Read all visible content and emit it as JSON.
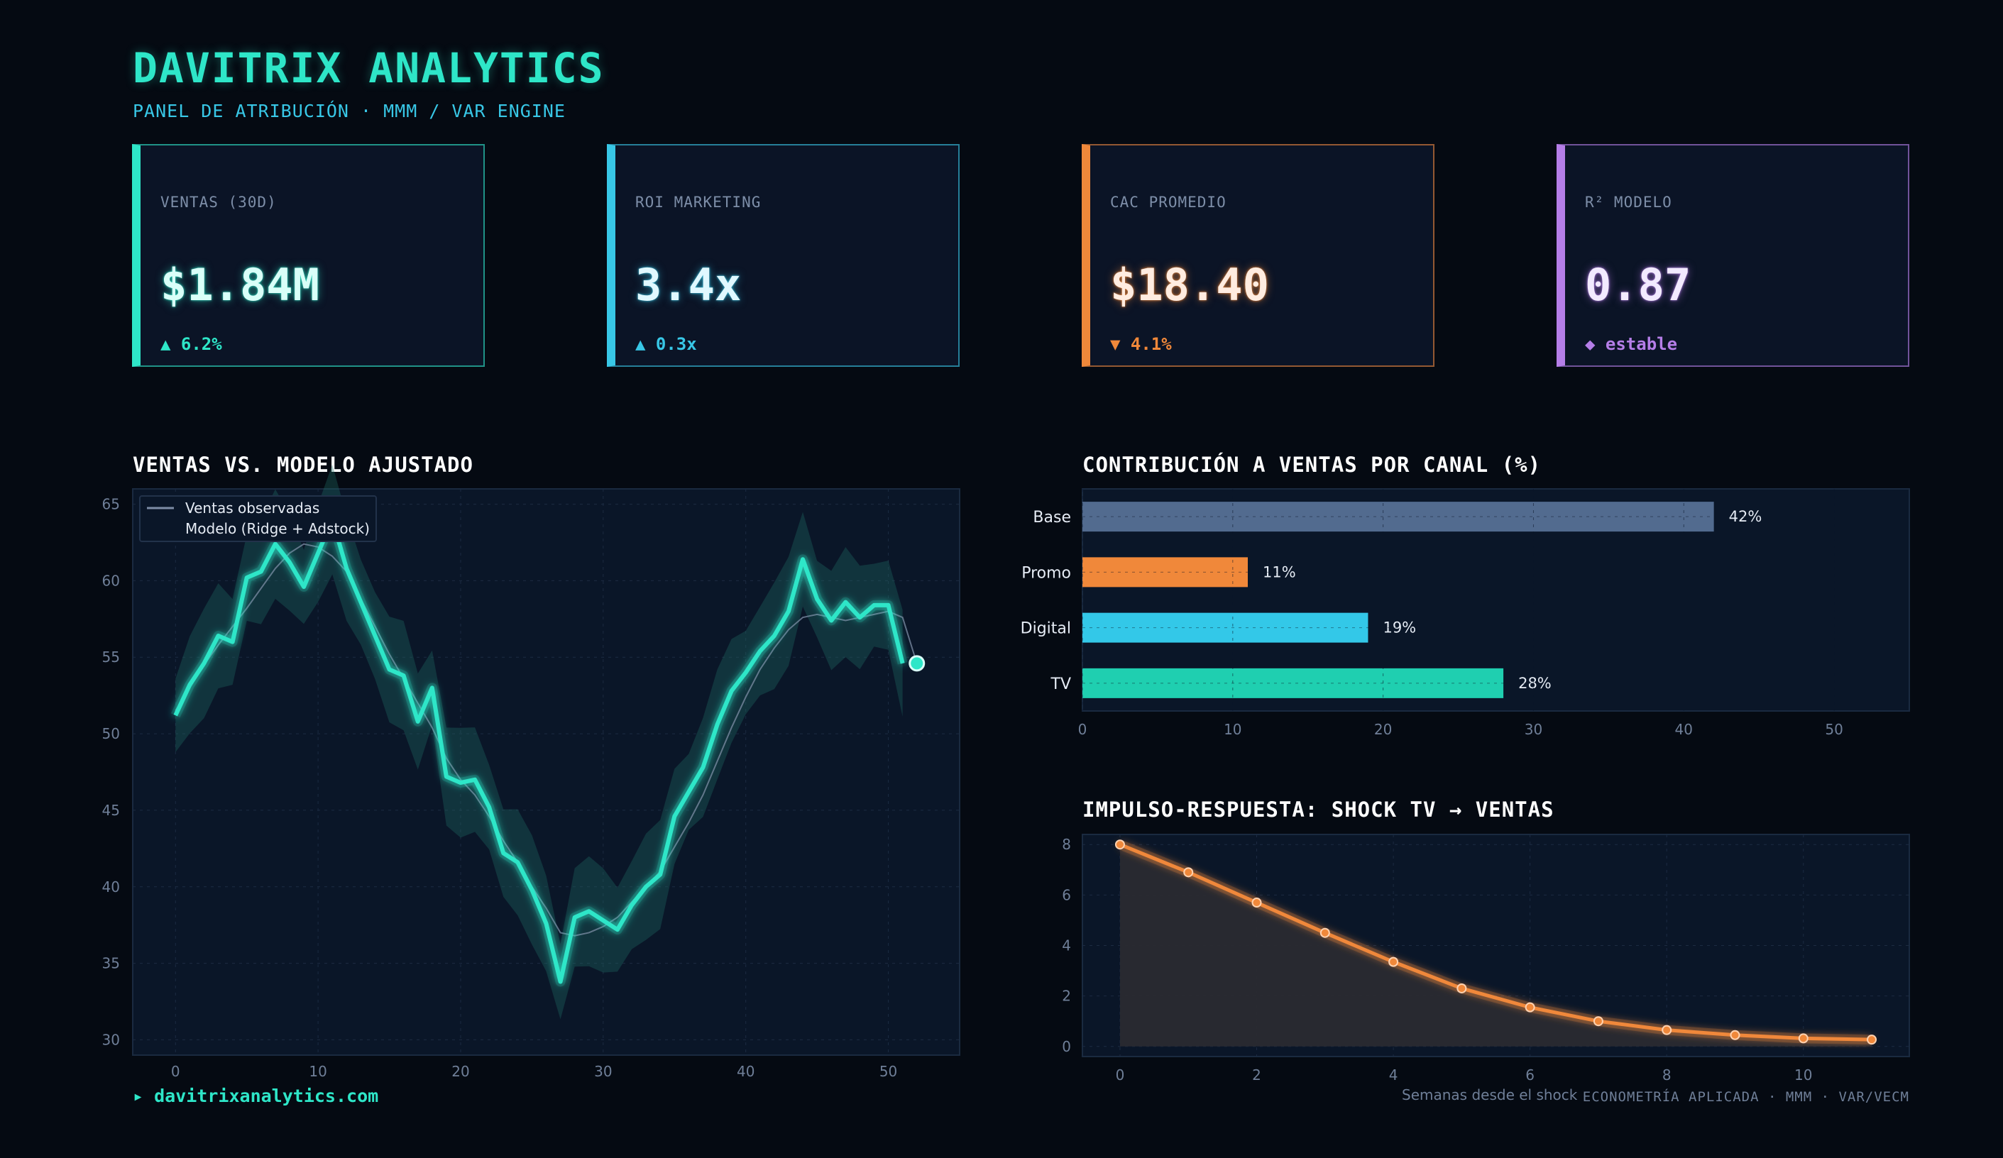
{
  "brand": {
    "title": "DAVITRIX ANALYTICS",
    "subtitle": "PANEL DE ATRIBUCIÓN · MMM / VAR ENGINE"
  },
  "kpis": [
    {
      "label": "VENTAS (30D)",
      "value": "$1.84M",
      "delta": "▲ 6.2%",
      "accent": "#2ee6c8",
      "value_color": "#d9fff8"
    },
    {
      "label": "ROI MARKETING",
      "value": "3.4x",
      "delta": "▲ 0.3x",
      "accent": "#38c7e6",
      "value_color": "#e0f8ff"
    },
    {
      "label": "CAC PROMEDIO",
      "value": "$18.40",
      "delta": "▼ 4.1%",
      "accent": "#f0883a",
      "value_color": "#ffece0"
    },
    {
      "label": "R² MODELO",
      "value": "0.87",
      "delta": "◆ estable",
      "accent": "#b57ee8",
      "value_color": "#f2eaff"
    }
  ],
  "chart_data": [
    {
      "type": "line",
      "title": "VENTAS VS. MODELO AJUSTADO",
      "xlabel": "",
      "ylabel": "",
      "xlim": [
        -3,
        55
      ],
      "ylim": [
        29,
        66
      ],
      "xticks": [
        0,
        10,
        20,
        30,
        40,
        50
      ],
      "yticks": [
        30,
        35,
        40,
        45,
        50,
        55,
        60,
        65
      ],
      "grid": true,
      "legend_position": "top-left",
      "series": [
        {
          "name": "Ventas observadas",
          "x": [
            0,
            1,
            2,
            3,
            4,
            5,
            6,
            7,
            8,
            9,
            10,
            11,
            12,
            13,
            14,
            15,
            16,
            17,
            18,
            19,
            20,
            21,
            22,
            23,
            24,
            25,
            26,
            27,
            28,
            29,
            30,
            31,
            32,
            33,
            34,
            35,
            36,
            37,
            38,
            39,
            40,
            41,
            42,
            43,
            44,
            45,
            46,
            47,
            48,
            49,
            50,
            51,
            52
          ],
          "values": [
            51.2,
            53.2,
            54.6,
            56.4,
            56.0,
            60.2,
            60.6,
            62.4,
            61.2,
            59.6,
            61.8,
            64.0,
            60.8,
            58.6,
            56.4,
            54.2,
            53.8,
            50.8,
            53.0,
            47.2,
            46.8,
            47.0,
            45.2,
            42.2,
            41.6,
            39.8,
            37.6,
            33.8,
            38.0,
            38.4,
            37.8,
            37.2,
            38.8,
            40.0,
            40.8,
            44.6,
            46.2,
            47.8,
            50.6,
            52.8,
            54.0,
            55.4,
            56.4,
            58.0,
            61.4,
            58.8,
            57.4,
            58.6,
            57.6,
            58.4,
            58.4,
            54.6,
            null
          ]
        },
        {
          "name": "Modelo (Ridge + Adstock)",
          "x": [
            0,
            1,
            2,
            3,
            4,
            5,
            6,
            7,
            8,
            9,
            10,
            11,
            12,
            13,
            14,
            15,
            16,
            17,
            18,
            19,
            20,
            21,
            22,
            23,
            24,
            25,
            26,
            27,
            28,
            29,
            30,
            31,
            32,
            33,
            34,
            35,
            36,
            37,
            38,
            39,
            40,
            41,
            42,
            43,
            44,
            45,
            46,
            47,
            48,
            49,
            50,
            51,
            52
          ],
          "values": [
            51.5,
            53.0,
            54.5,
            55.8,
            57.0,
            58.2,
            59.5,
            60.8,
            61.8,
            62.4,
            62.2,
            61.6,
            60.6,
            58.8,
            57.0,
            55.2,
            53.6,
            52.0,
            50.4,
            48.4,
            47.0,
            46.0,
            44.6,
            43.0,
            41.6,
            40.0,
            38.6,
            37.0,
            36.8,
            37.0,
            37.4,
            38.0,
            39.0,
            40.0,
            41.0,
            42.6,
            44.2,
            46.0,
            48.2,
            50.4,
            52.4,
            54.2,
            55.6,
            56.8,
            57.6,
            57.8,
            57.6,
            57.4,
            57.6,
            57.8,
            58.0,
            57.6,
            54.6
          ]
        }
      ]
    },
    {
      "type": "bar",
      "orientation": "horizontal",
      "title": "CONTRIBUCIÓN A VENTAS POR CANAL (%)",
      "categories": [
        "Base",
        "Promo",
        "Digital",
        "TV"
      ],
      "values": [
        42,
        11,
        19,
        28
      ],
      "value_labels": [
        "42%",
        "11%",
        "19%",
        "28%"
      ],
      "colors": [
        "#526b8f",
        "#f0883a",
        "#33c8e8",
        "#1fcfb0"
      ],
      "xlim": [
        0,
        55
      ],
      "xticks": [
        0,
        10,
        20,
        30,
        40,
        50
      ],
      "xlabel": "",
      "grid": true
    },
    {
      "type": "area",
      "title": "IMPULSO-RESPUESTA: SHOCK TV → VENTAS",
      "xlabel": "Semanas desde el shock",
      "ylabel": "",
      "x": [
        0,
        1,
        2,
        3,
        4,
        5,
        6,
        7,
        8,
        9,
        10,
        11
      ],
      "values": [
        8.0,
        6.9,
        5.7,
        4.5,
        3.35,
        2.3,
        1.55,
        1.0,
        0.65,
        0.45,
        0.32,
        0.27
      ],
      "xlim": [
        -0.55,
        11.55
      ],
      "ylim": [
        -0.4,
        8.4
      ],
      "xticks": [
        0,
        2,
        4,
        6,
        8,
        10
      ],
      "yticks": [
        0,
        2,
        4,
        6,
        8
      ],
      "color": "#f0883a",
      "grid": true
    }
  ],
  "footer": {
    "link": "▸ davitrixanalytics.com",
    "tagline": "ECONOMETRÍA APLICADA · MMM · VAR/VECM"
  }
}
